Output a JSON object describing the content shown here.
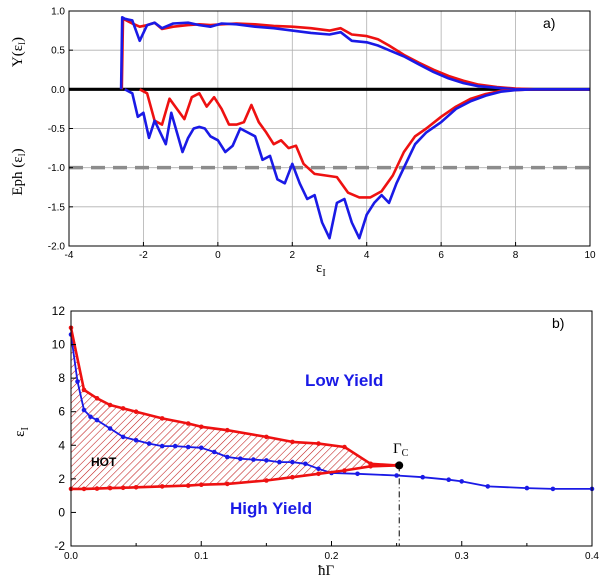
{
  "colors": {
    "red": "#ee1111",
    "blue": "#1a1ae6",
    "dashed": "#8c8c8c",
    "grid": "#b0b0b0"
  },
  "chart_data": [
    {
      "type": "line",
      "panel_label": "a)",
      "xlabel": "ε",
      "xlabel_sub": "I",
      "ylabel_top": "Y(ε",
      "ylabel_top_sub": "I",
      "ylabel_top_end": ")",
      "ylabel_bottom": "Eph (ε",
      "ylabel_bottom_sub": "I",
      "ylabel_bottom_end": ")",
      "xlim": [
        -4,
        10
      ],
      "ylim": [
        -2.0,
        1.0
      ],
      "x_ticks": [
        "-4",
        "-2",
        "0",
        "2",
        "4",
        "6",
        "8",
        "10"
      ],
      "y_ticks": [
        "1.0",
        "0.5",
        "0.0",
        "-0.5",
        "-1.0",
        "-1.5",
        "-2.0"
      ],
      "grid": true,
      "reference_lines": [
        {
          "y": 0.0,
          "style": "solid-black"
        },
        {
          "y": -1.0,
          "style": "dashed-gray"
        }
      ],
      "series": [
        {
          "color": "red",
          "curve": "yield",
          "x": [
            -2.58,
            -2.55,
            -2.5,
            -2.3,
            -2.1,
            -1.9,
            -1.7,
            -1.5,
            -1.2,
            -0.8,
            -0.5,
            -0.2,
            0.1,
            0.5,
            1.0,
            1.5,
            2.0,
            2.5,
            3.0,
            3.3,
            3.6,
            4.0,
            4.3,
            4.6,
            5.0,
            5.4,
            5.8,
            6.2,
            6.6,
            7.0,
            7.5,
            8.0,
            8.5,
            9.0,
            10.0
          ],
          "y": [
            0.0,
            0.9,
            0.89,
            0.84,
            0.8,
            0.82,
            0.85,
            0.77,
            0.8,
            0.82,
            0.83,
            0.82,
            0.83,
            0.84,
            0.83,
            0.81,
            0.8,
            0.78,
            0.75,
            0.78,
            0.7,
            0.68,
            0.64,
            0.56,
            0.44,
            0.34,
            0.25,
            0.17,
            0.11,
            0.06,
            0.03,
            0.01,
            0.0,
            0.0,
            0.0
          ]
        },
        {
          "color": "blue",
          "curve": "yield",
          "x": [
            -2.6,
            -2.57,
            -2.5,
            -2.3,
            -2.1,
            -1.9,
            -1.7,
            -1.5,
            -1.2,
            -0.8,
            -0.5,
            -0.2,
            0.1,
            0.5,
            1.0,
            1.5,
            2.0,
            2.5,
            3.0,
            3.3,
            3.6,
            4.0,
            4.3,
            4.6,
            5.0,
            5.4,
            5.8,
            6.2,
            6.6,
            7.0,
            7.5,
            8.0,
            8.5,
            9.0,
            10.0
          ],
          "y": [
            0.0,
            0.92,
            0.9,
            0.88,
            0.62,
            0.82,
            0.85,
            0.78,
            0.84,
            0.85,
            0.82,
            0.8,
            0.84,
            0.83,
            0.8,
            0.78,
            0.75,
            0.72,
            0.7,
            0.73,
            0.62,
            0.6,
            0.56,
            0.5,
            0.42,
            0.32,
            0.22,
            0.14,
            0.08,
            0.04,
            0.02,
            0.0,
            0.0,
            0.0,
            0.0
          ]
        },
        {
          "color": "red",
          "curve": "energy",
          "x": [
            -2.1,
            -1.9,
            -1.7,
            -1.5,
            -1.3,
            -1.1,
            -0.9,
            -0.7,
            -0.5,
            -0.3,
            -0.1,
            0.1,
            0.3,
            0.5,
            0.7,
            0.9,
            1.1,
            1.3,
            1.5,
            1.7,
            1.9,
            2.1,
            2.3,
            2.6,
            2.9,
            3.2,
            3.5,
            3.8,
            4.1,
            4.4,
            4.7,
            5.0,
            5.3,
            5.6,
            6.0,
            6.4,
            6.8,
            7.2,
            7.6,
            8.0,
            8.5,
            9.0,
            10.0
          ],
          "y": [
            0.0,
            -0.05,
            -0.4,
            -0.45,
            -0.12,
            -0.25,
            -0.38,
            -0.1,
            -0.05,
            -0.22,
            -0.1,
            -0.25,
            -0.45,
            -0.45,
            -0.42,
            -0.2,
            -0.42,
            -0.55,
            -0.7,
            -0.65,
            -0.75,
            -0.72,
            -0.95,
            -1.08,
            -1.1,
            -1.12,
            -1.32,
            -1.38,
            -1.38,
            -1.3,
            -1.1,
            -0.8,
            -0.6,
            -0.5,
            -0.35,
            -0.22,
            -0.12,
            -0.06,
            -0.02,
            -0.01,
            0.0,
            0.0,
            0.0
          ]
        },
        {
          "color": "blue",
          "curve": "energy",
          "x": [
            -2.5,
            -2.3,
            -2.15,
            -2.0,
            -1.85,
            -1.7,
            -1.55,
            -1.4,
            -1.25,
            -1.1,
            -0.95,
            -0.8,
            -0.65,
            -0.5,
            -0.35,
            -0.2,
            0.0,
            0.2,
            0.4,
            0.6,
            0.8,
            1.0,
            1.2,
            1.4,
            1.6,
            1.8,
            2.0,
            2.2,
            2.4,
            2.6,
            2.8,
            3.0,
            3.2,
            3.4,
            3.6,
            3.8,
            4.0,
            4.2,
            4.4,
            4.6,
            4.8,
            5.0,
            5.3,
            5.6,
            6.0,
            6.4,
            6.8,
            7.2,
            7.6,
            8.0,
            8.5,
            9.0,
            10.0
          ],
          "y": [
            0.0,
            -0.05,
            -0.35,
            -0.3,
            -0.62,
            -0.4,
            -0.55,
            -0.7,
            -0.3,
            -0.55,
            -0.8,
            -0.62,
            -0.5,
            -0.48,
            -0.5,
            -0.6,
            -0.65,
            -0.8,
            -0.72,
            -0.5,
            -0.55,
            -0.6,
            -0.9,
            -0.85,
            -1.15,
            -1.2,
            -0.95,
            -1.2,
            -1.4,
            -1.35,
            -1.7,
            -1.9,
            -1.45,
            -1.4,
            -1.7,
            -1.9,
            -1.6,
            -1.45,
            -1.35,
            -1.45,
            -1.2,
            -1.0,
            -0.7,
            -0.55,
            -0.42,
            -0.25,
            -0.15,
            -0.08,
            -0.03,
            -0.01,
            0.0,
            0.0,
            0.0
          ]
        }
      ]
    },
    {
      "type": "line",
      "panel_label": "b)",
      "xlabel": "ħΓ",
      "ylabel": "ε",
      "ylabel_sub": "I",
      "xlim": [
        0.0,
        0.4
      ],
      "ylim": [
        -2,
        12
      ],
      "x_ticks": [
        "0.0",
        "0.1",
        "0.2",
        "0.3",
        "0.4"
      ],
      "y_ticks": [
        "12",
        "10",
        "8",
        "6",
        "4",
        "2",
        "0",
        "-2"
      ],
      "grid": false,
      "regions": [
        {
          "label": "Low Yield",
          "color": "blue"
        },
        {
          "label": "High Yield",
          "color": "blue"
        },
        {
          "label": "HOT",
          "color": "black"
        }
      ],
      "critical_point": {
        "label": "Γ",
        "label_sub": "C",
        "x": 0.252,
        "y": 2.8
      },
      "series": [
        {
          "color": "red",
          "curve": "upper",
          "x": [
            0.0,
            0.01,
            0.02,
            0.03,
            0.04,
            0.05,
            0.07,
            0.09,
            0.1,
            0.12,
            0.15,
            0.17,
            0.19,
            0.21,
            0.23,
            0.25
          ],
          "y": [
            11.0,
            7.3,
            6.8,
            6.4,
            6.2,
            6.0,
            5.6,
            5.3,
            5.1,
            4.9,
            4.5,
            4.2,
            4.1,
            3.9,
            2.9,
            2.8
          ]
        },
        {
          "color": "red",
          "curve": "lower",
          "x": [
            0.0,
            0.01,
            0.02,
            0.03,
            0.04,
            0.05,
            0.07,
            0.09,
            0.1,
            0.12,
            0.15,
            0.17,
            0.19,
            0.21,
            0.23,
            0.25
          ],
          "y": [
            1.4,
            1.4,
            1.42,
            1.45,
            1.47,
            1.5,
            1.55,
            1.6,
            1.65,
            1.7,
            1.9,
            2.1,
            2.3,
            2.5,
            2.75,
            2.8
          ]
        },
        {
          "color": "blue",
          "curve": "boundary",
          "x": [
            0.0,
            0.005,
            0.01,
            0.015,
            0.02,
            0.03,
            0.04,
            0.05,
            0.06,
            0.07,
            0.08,
            0.09,
            0.1,
            0.11,
            0.12,
            0.13,
            0.14,
            0.15,
            0.16,
            0.17,
            0.18,
            0.19,
            0.2,
            0.22,
            0.25,
            0.27,
            0.29,
            0.3,
            0.32,
            0.35,
            0.37,
            0.4
          ],
          "y": [
            10.6,
            7.8,
            6.1,
            5.7,
            5.5,
            5.0,
            4.5,
            4.3,
            4.1,
            3.95,
            3.95,
            3.9,
            3.85,
            3.6,
            3.3,
            3.2,
            3.15,
            3.1,
            3.0,
            3.0,
            2.9,
            2.6,
            2.35,
            2.3,
            2.2,
            2.1,
            1.95,
            1.85,
            1.55,
            1.45,
            1.4,
            1.4
          ]
        }
      ]
    }
  ]
}
